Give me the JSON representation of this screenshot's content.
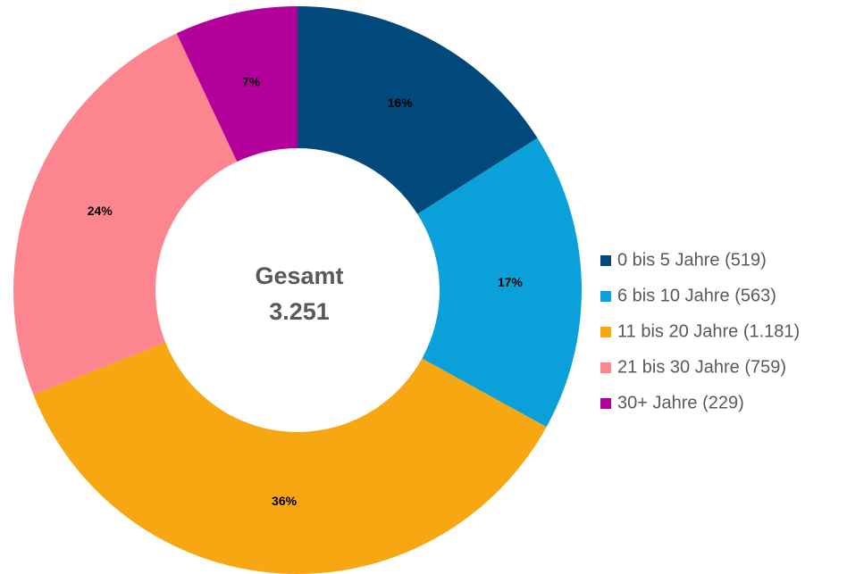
{
  "chart_data": {
    "type": "donut",
    "center_title": "Gesamt",
    "center_value": "3.251",
    "categories": [
      "0 bis 5 Jahre (519)",
      "6 bis 10 Jahre (563)",
      "11 bis 20 Jahre (1.181)",
      "21 bis 30 Jahre (759)",
      "30+ Jahre (229)"
    ],
    "values": [
      16,
      17,
      36,
      24,
      7
    ],
    "value_labels": [
      "16%",
      "17%",
      "36%",
      "24%",
      "7%"
    ],
    "colors": [
      "#00497a",
      "#0aa0d9",
      "#f7a712",
      "#fd8590",
      "#b4009b"
    ],
    "legend": "right"
  }
}
